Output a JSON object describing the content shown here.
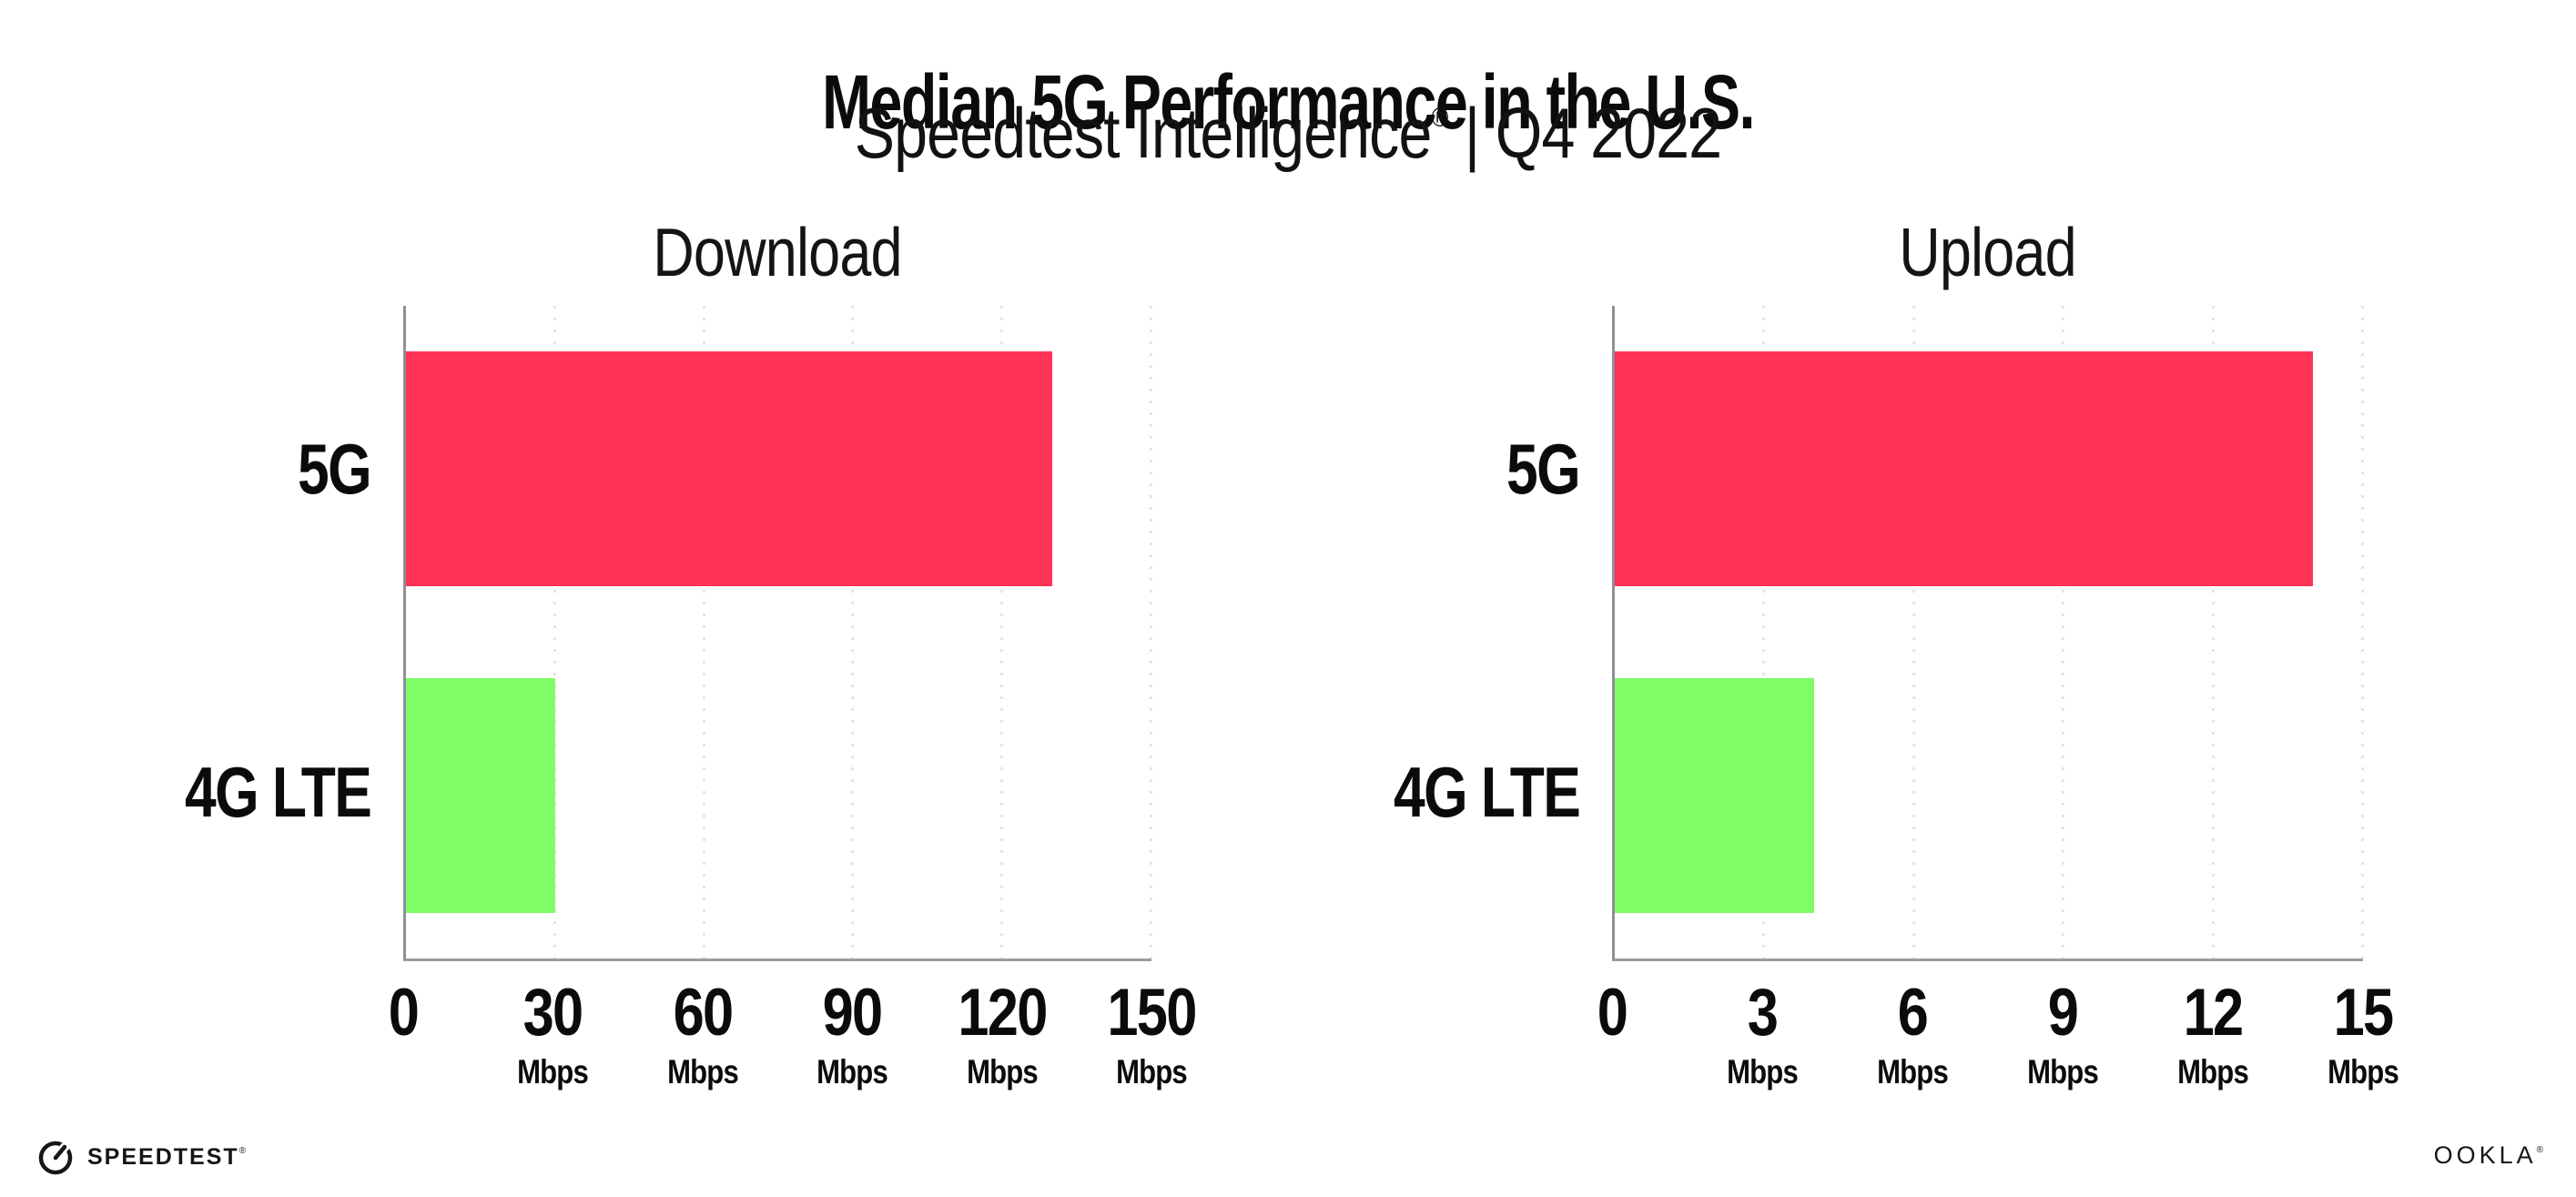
{
  "header": {
    "title": "Median 5G Performance in the U.S.",
    "subtitle_brand": "Speedtest Intelligence",
    "subtitle_registered": "®",
    "subtitle_period": " | Q4 2022"
  },
  "chart_data": [
    {
      "type": "bar",
      "orientation": "horizontal",
      "title": "Download",
      "categories": [
        "5G",
        "4G LTE"
      ],
      "values": [
        130,
        30
      ],
      "unit": "Mbps",
      "xlim": [
        0,
        150
      ],
      "tick_values": [
        0,
        30,
        60,
        90,
        120,
        150
      ],
      "tick_labels": [
        "0",
        "30",
        "60",
        "90",
        "120",
        "150"
      ],
      "tick_unit_labels": [
        "",
        "Mbps",
        "Mbps",
        "Mbps",
        "Mbps",
        "Mbps"
      ],
      "bar_colors": [
        "#FF3355",
        "#80FC66"
      ],
      "grid": "dotted-vertical-gridlines",
      "legend": "none"
    },
    {
      "type": "bar",
      "orientation": "horizontal",
      "title": "Upload",
      "categories": [
        "5G",
        "4G LTE"
      ],
      "values": [
        14,
        4
      ],
      "unit": "Mbps",
      "xlim": [
        0,
        15
      ],
      "tick_values": [
        0,
        3,
        6,
        9,
        12,
        15
      ],
      "tick_labels": [
        "0",
        "3",
        "6",
        "9",
        "12",
        "15"
      ],
      "tick_unit_labels": [
        "",
        "Mbps",
        "Mbps",
        "Mbps",
        "Mbps",
        "Mbps"
      ],
      "bar_colors": [
        "#FF3355",
        "#80FC66"
      ],
      "grid": "dotted-vertical-gridlines",
      "legend": "none"
    }
  ],
  "footer": {
    "speedtest_logo_text": "SPEEDTEST",
    "speedtest_registered": "®",
    "ookla_logo_text": "OOKLA",
    "ookla_registered": "®"
  },
  "colors": {
    "bar_5g": "#FF3355",
    "bar_4g_lte": "#80FC66",
    "axis_line": "#8f8f97",
    "gridline": "#e3e3ec",
    "text": "#0b0b0b",
    "background": "#ffffff"
  }
}
